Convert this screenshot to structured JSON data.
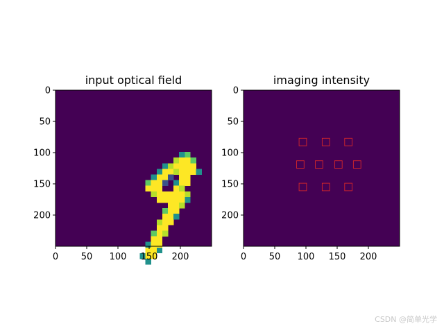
{
  "colors": {
    "background_cell": "#440154",
    "digit_ramp": [
      "#440154",
      "#3b528b",
      "#21918c",
      "#5ec962",
      "#b5de2b",
      "#fde725"
    ],
    "roi_box": "#d62728",
    "axis": "#000000"
  },
  "watermark": "CSDN @简单光学",
  "chart_data": [
    {
      "type": "heatmap",
      "title": "input optical field",
      "xlim": [
        0,
        250
      ],
      "ylim": [
        250,
        0
      ],
      "xticks": [
        0,
        50,
        100,
        150,
        200
      ],
      "yticks": [
        0,
        50,
        100,
        150,
        200
      ],
      "grid": false,
      "colormap": "viridis",
      "pixel_size": 9,
      "image_rows": [
        "...........................",
        "...........................",
        "...........................",
        "...........................",
        "...........................",
        "...........................",
        "...........................",
        "...........................",
        "...........................",
        "...........................",
        "...........................",
        "......................23...",
        ".....................4553..",
        "...................245555..",
        "..................25545552.",
        ".................2551.55...",
        "................3551.255...",
        "................555..54....",
        ".................4555554...",
        "..................555552...",
        "....................554....",
        "...................355.....",
        "...................552.....",
        "..................455......",
        "..................55.......",
        ".................354.......",
        ".................55........",
        "................255........",
        "................552........",
        "...............255.........",
        "................2..........",
        "...........................",
        "...........................",
        "...........................",
        "...........................",
        "...........................",
        "...........................",
        "...........................",
        "...........................",
        "..........................."
      ]
    },
    {
      "type": "heatmap",
      "title": "imaging intensity",
      "xlim": [
        0,
        250
      ],
      "ylim": [
        250,
        0
      ],
      "xticks": [
        0,
        50,
        100,
        150,
        200
      ],
      "yticks": [
        0,
        50,
        100,
        150,
        200
      ],
      "grid": false,
      "colormap": "viridis",
      "detector_regions": [
        {
          "x": 95,
          "y": 83
        },
        {
          "x": 132,
          "y": 83
        },
        {
          "x": 168,
          "y": 83
        },
        {
          "x": 91,
          "y": 119
        },
        {
          "x": 121,
          "y": 119
        },
        {
          "x": 152,
          "y": 119
        },
        {
          "x": 182,
          "y": 119
        },
        {
          "x": 95,
          "y": 155
        },
        {
          "x": 132,
          "y": 155
        },
        {
          "x": 168,
          "y": 155
        }
      ],
      "detector_region_size": 12
    }
  ]
}
